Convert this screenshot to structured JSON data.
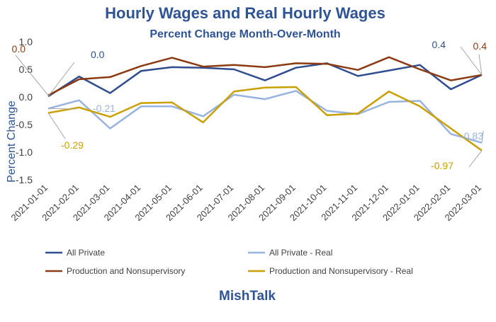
{
  "chart_data": {
    "type": "line",
    "title": "Hourly Wages and Real Hourly Wages",
    "subtitle": "Percent Change Month-Over-Month",
    "ylabel": "Percent Change",
    "xlabel": "",
    "source_label": "MishTalk",
    "ylim": [
      -1.5,
      1.0
    ],
    "yticks": [
      1.0,
      0.5,
      0.0,
      -0.5,
      -1.0,
      -1.5
    ],
    "ytick_labels": [
      "1.0",
      "0.5",
      "0.0",
      "-0.5",
      "-1.0",
      "-1.5"
    ],
    "grid": false,
    "legend_position": "bottom",
    "categories": [
      "2021-01-01",
      "2021-02-01",
      "2021-03-01",
      "2021-04-01",
      "2021-05-01",
      "2021-06-01",
      "2021-07-01",
      "2021-08-01",
      "2021-09-01",
      "2021-10-01",
      "2021-11-01",
      "2021-12-01",
      "2022-01-01",
      "2022-02-01",
      "2022-03-01"
    ],
    "series": [
      {
        "name": "All Private",
        "color": "#2f4d8f",
        "values": [
          0.01,
          0.37,
          0.07,
          0.47,
          0.54,
          0.53,
          0.5,
          0.3,
          0.53,
          0.61,
          0.38,
          0.48,
          0.58,
          0.14,
          0.4
        ]
      },
      {
        "name": "All Private - Real",
        "color": "#97b3df",
        "values": [
          -0.21,
          -0.06,
          -0.57,
          -0.17,
          -0.17,
          -0.35,
          0.04,
          -0.04,
          0.11,
          -0.25,
          -0.31,
          -0.09,
          -0.07,
          -0.67,
          -0.83
        ]
      },
      {
        "name": "Production and Nonsupervisory",
        "color": "#8b3a12",
        "values": [
          0.03,
          0.32,
          0.36,
          0.56,
          0.71,
          0.55,
          0.58,
          0.54,
          0.61,
          0.6,
          0.49,
          0.72,
          0.5,
          0.3,
          0.4
        ]
      },
      {
        "name": "Production and Nonsupervisory - Real",
        "color": "#c9a000",
        "values": [
          -0.29,
          -0.19,
          -0.36,
          -0.11,
          -0.1,
          -0.46,
          0.1,
          0.17,
          0.18,
          -0.33,
          -0.3,
          0.1,
          -0.17,
          -0.57,
          -0.97
        ]
      }
    ],
    "annotations": [
      {
        "text": "0.0",
        "series": 2,
        "index": 0,
        "color": "#8b3a12"
      },
      {
        "text": "0.0",
        "series": 0,
        "index": 0,
        "color": "#2f4d8f"
      },
      {
        "text": "-0.21",
        "series": 1,
        "index": 0,
        "color": "#97b3df"
      },
      {
        "text": "-0.29",
        "series": 3,
        "index": 0,
        "color": "#c9a000"
      },
      {
        "text": "0.4",
        "series": 0,
        "index": 14,
        "color": "#2f4d8f"
      },
      {
        "text": "0.4",
        "series": 2,
        "index": 14,
        "color": "#8b3a12"
      },
      {
        "text": "-0.83",
        "series": 1,
        "index": 14,
        "color": "#97b3df"
      },
      {
        "text": "-0.97",
        "series": 3,
        "index": 14,
        "color": "#c9a000"
      }
    ]
  }
}
